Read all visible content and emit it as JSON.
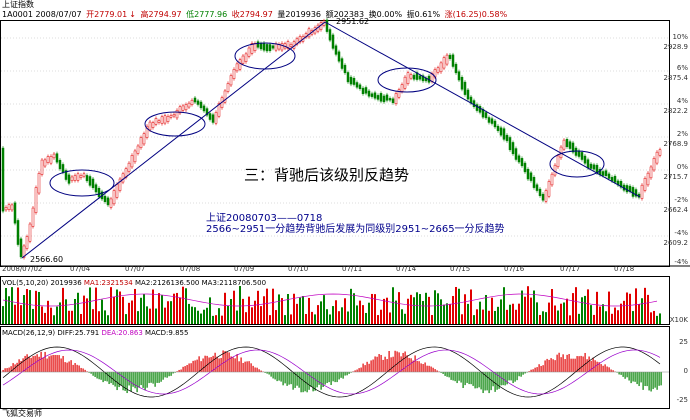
{
  "header": {
    "title": "上证指数",
    "code_date": "1A0001 2008/07/07",
    "open": "开2779.01",
    "high": "高2794.97",
    "low": "低2777.96",
    "close": "收2794.97",
    "volume": "量2019936",
    "amount": "额202383",
    "turnover": "换0.00%",
    "amplitude": "振0.61%",
    "change": "涨(16.25)0.58%"
  },
  "price_chart": {
    "high_label": "2951.62",
    "low_label": "2566.60",
    "y_ticks": [
      "10%",
      "2928.9",
      "6%",
      "2875.4",
      "4%",
      "2822.2",
      "2%",
      "2768.9",
      "0%",
      "2715.7",
      "-2%",
      "2662.4",
      "-4%",
      "2609.2"
    ],
    "x_ticks": [
      "2008/07/02",
      "07/04",
      "07/07",
      "07/08",
      "07/09",
      "07/10",
      "07/11",
      "07/14",
      "07/15",
      "07/16",
      "07/17",
      "07/18"
    ],
    "bottom_right_tick": "-4%"
  },
  "annotation": {
    "main": "三：背驰后该级别反趋势",
    "line1": "上证20080703——0718",
    "line2": "2566~2951一分趋势背驰后发展为同级别2951~2665一分反趋势"
  },
  "volume_panel": {
    "label": "VOL(5,10,20)",
    "vol": "2019936",
    "ma1": "MA1:2321534",
    "ma2": "MA2:2126136.500",
    "ma3": "MA3:2118706.500",
    "y_ticks": [
      "X10K"
    ]
  },
  "macd_panel": {
    "label": "MACD(26,12,9)",
    "diff": "DIFF:25.791",
    "dea": "DEA:20.863",
    "macd": "MACD:9.855",
    "y_ticks": [
      "25",
      "0",
      "-25"
    ]
  },
  "footer": {
    "brand": "飞狐交易师"
  },
  "colors": {
    "up": "#e00000",
    "down": "#008000",
    "trend": "#000080",
    "diff": "#000000",
    "dea": "#9900cc"
  }
}
